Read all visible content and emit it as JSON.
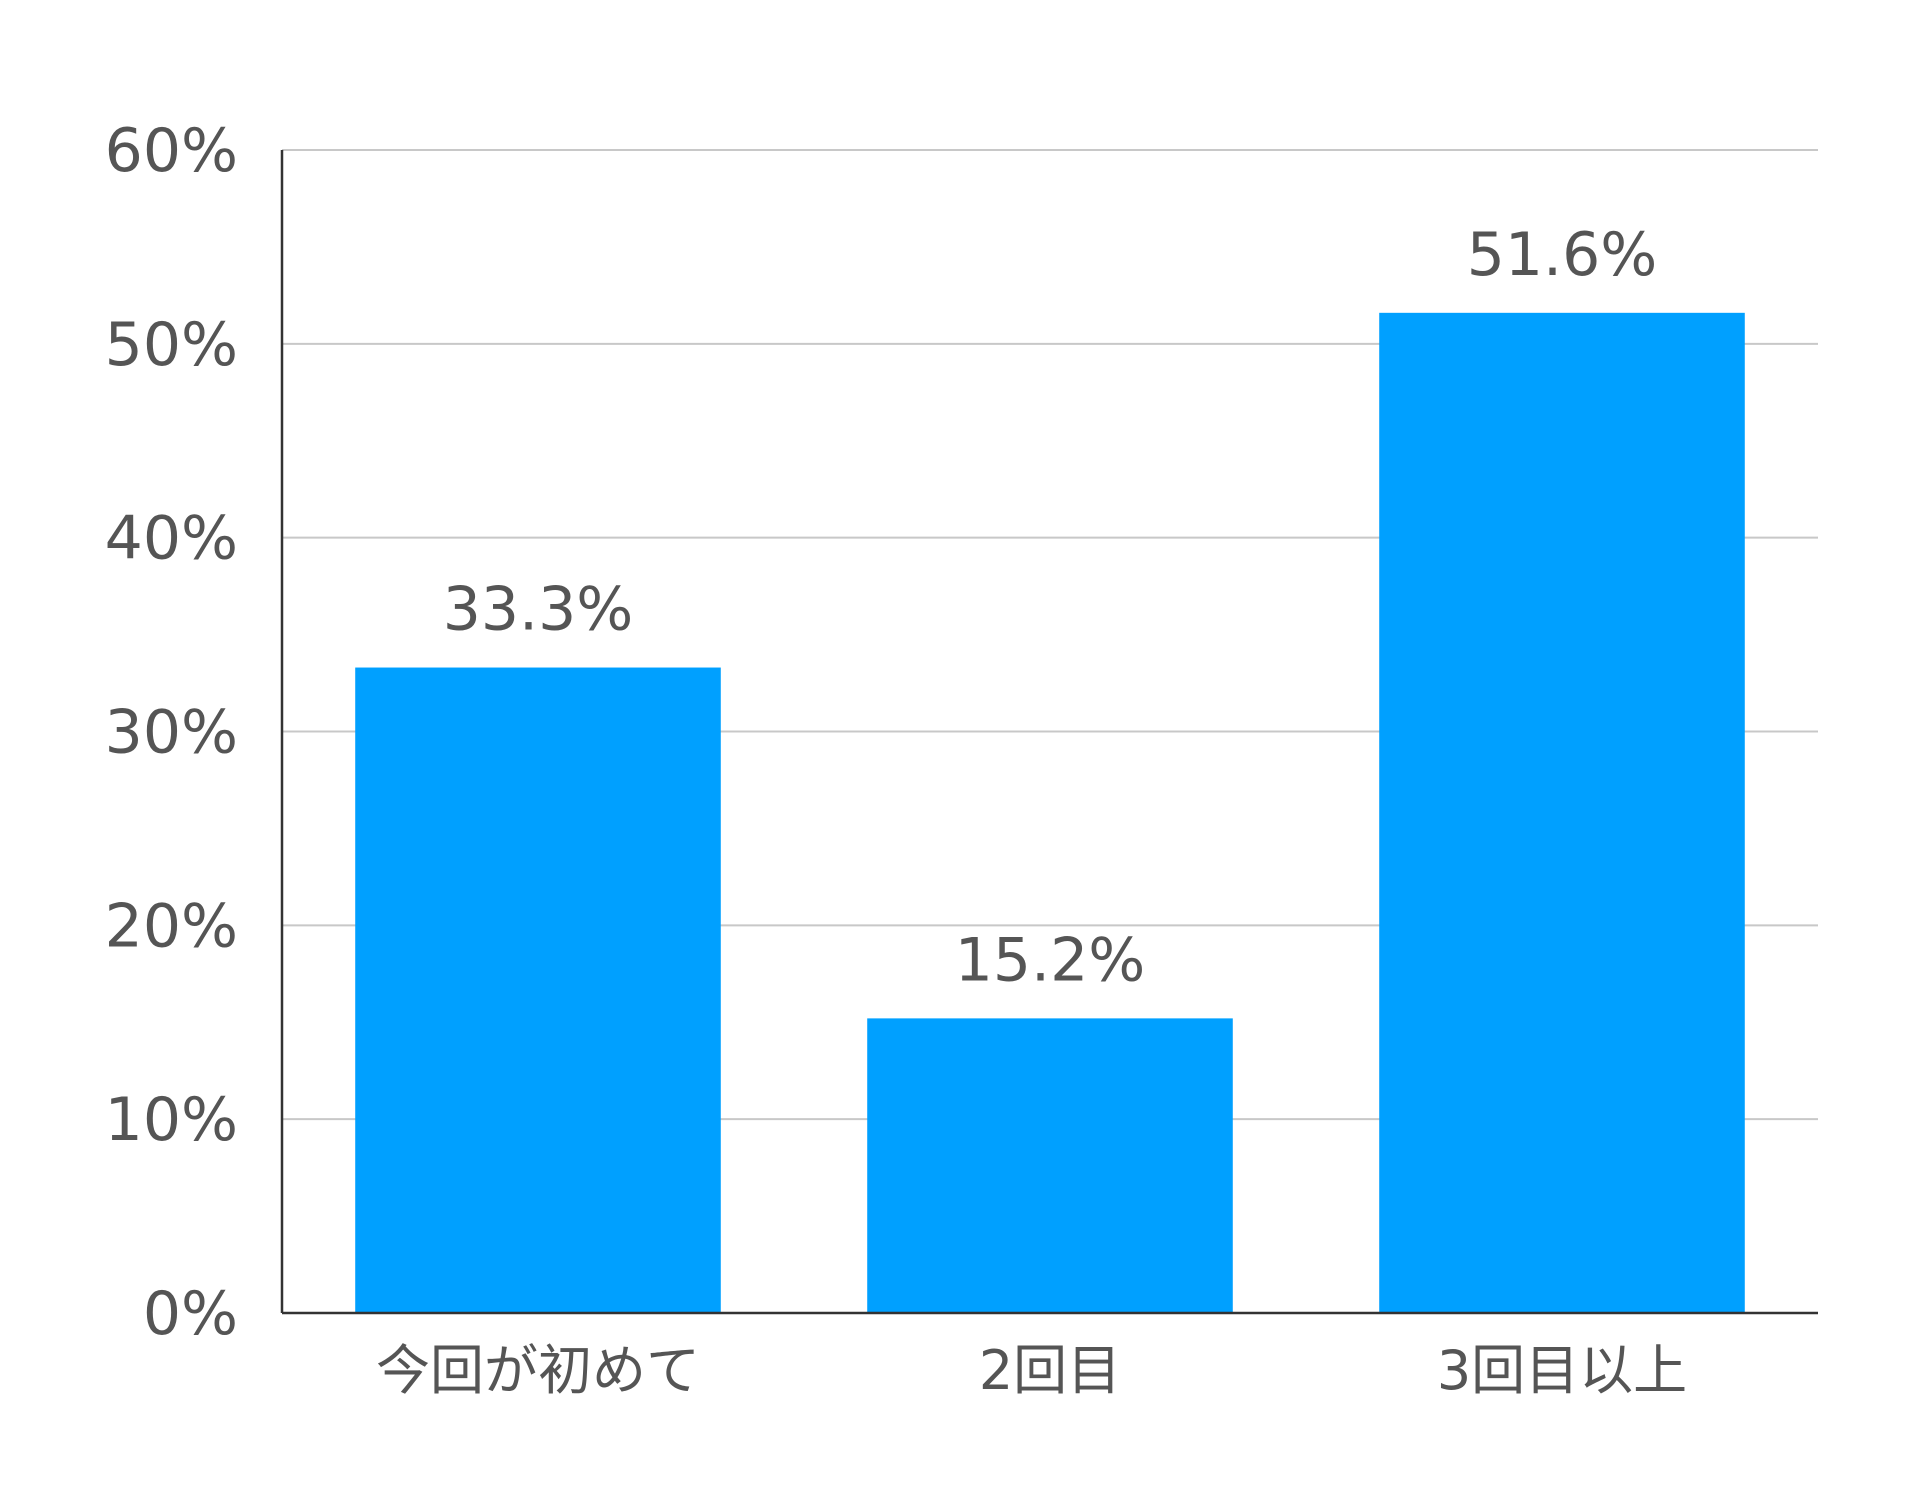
{
  "chart_data": {
    "type": "bar",
    "categories": [
      "今回が初めて",
      "2回目",
      "3回目以上"
    ],
    "values": [
      33.3,
      15.2,
      51.6
    ],
    "data_labels": [
      "33.3%",
      "15.2%",
      "51.6%"
    ],
    "y_ticks": [
      0,
      10,
      20,
      30,
      40,
      50,
      60
    ],
    "y_tick_labels": [
      "0%",
      "10%",
      "20%",
      "30%",
      "40%",
      "50%",
      "60%"
    ],
    "ylim": [
      0,
      60
    ],
    "grid": true,
    "legend": "none",
    "bar_color": "#00a0ff"
  }
}
